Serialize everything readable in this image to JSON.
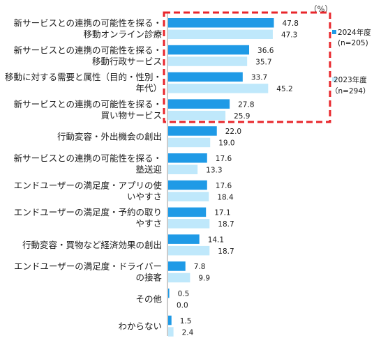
{
  "chart_data": {
    "type": "bar",
    "orientation": "horizontal",
    "unit": "（%）",
    "categories": [
      [
        "新サービスとの連携の可能性を探る・",
        "移動オンライン診療"
      ],
      [
        "新サービスとの連携の可能性を探る・",
        "移動行政サービス"
      ],
      [
        "移動に対する需要と属性（目的・性別・",
        "年代）"
      ],
      [
        "新サービスとの連携の可能性を探る・",
        "買い物サービス"
      ],
      [
        "行動変容・外出機会の創出"
      ],
      [
        "新サービスとの連携の可能性を探る・",
        "塾送迎"
      ],
      [
        "エンドユーザーの満足度・アプリの使",
        "いやすさ"
      ],
      [
        "エンドユーザーの満足度・予約の取り",
        "やすさ"
      ],
      [
        "行動変容・買物など経済効果の創出"
      ],
      [
        "エンドユーザーの満足度・ドライバー",
        "の接客"
      ],
      [
        "その他"
      ],
      [
        "わからない"
      ]
    ],
    "series": [
      {
        "name": "2024年度",
        "name_line2": "(n=205)",
        "color": "#1f9ae6",
        "values": [
          47.8,
          36.6,
          33.7,
          27.8,
          22.0,
          17.6,
          17.6,
          17.1,
          14.1,
          7.8,
          0.5,
          1.5
        ],
        "labels": [
          "47.8",
          "36.6",
          "33.7",
          "27.8",
          "22.0",
          "17.6",
          "17.6",
          "17.1",
          "14.1",
          "7.8",
          "0.5",
          "1.5"
        ]
      },
      {
        "name": "2023年度",
        "name_line2": "（n=294）",
        "color": "#bfe8fb",
        "values": [
          47.3,
          35.7,
          45.2,
          25.9,
          19.0,
          13.3,
          18.4,
          18.7,
          18.7,
          9.9,
          0.0,
          2.4
        ],
        "labels": [
          "47.3",
          "35.7",
          "45.2",
          "25.9",
          "19.0",
          "13.3",
          "18.4",
          "18.7",
          "18.7",
          "9.9",
          "0.0",
          "2.4"
        ]
      }
    ],
    "xlim": [
      0,
      60
    ],
    "highlight": {
      "rows": [
        0,
        3
      ],
      "color": "#e8262b",
      "style": "dashed"
    },
    "legend_position": "right",
    "grid": false
  }
}
